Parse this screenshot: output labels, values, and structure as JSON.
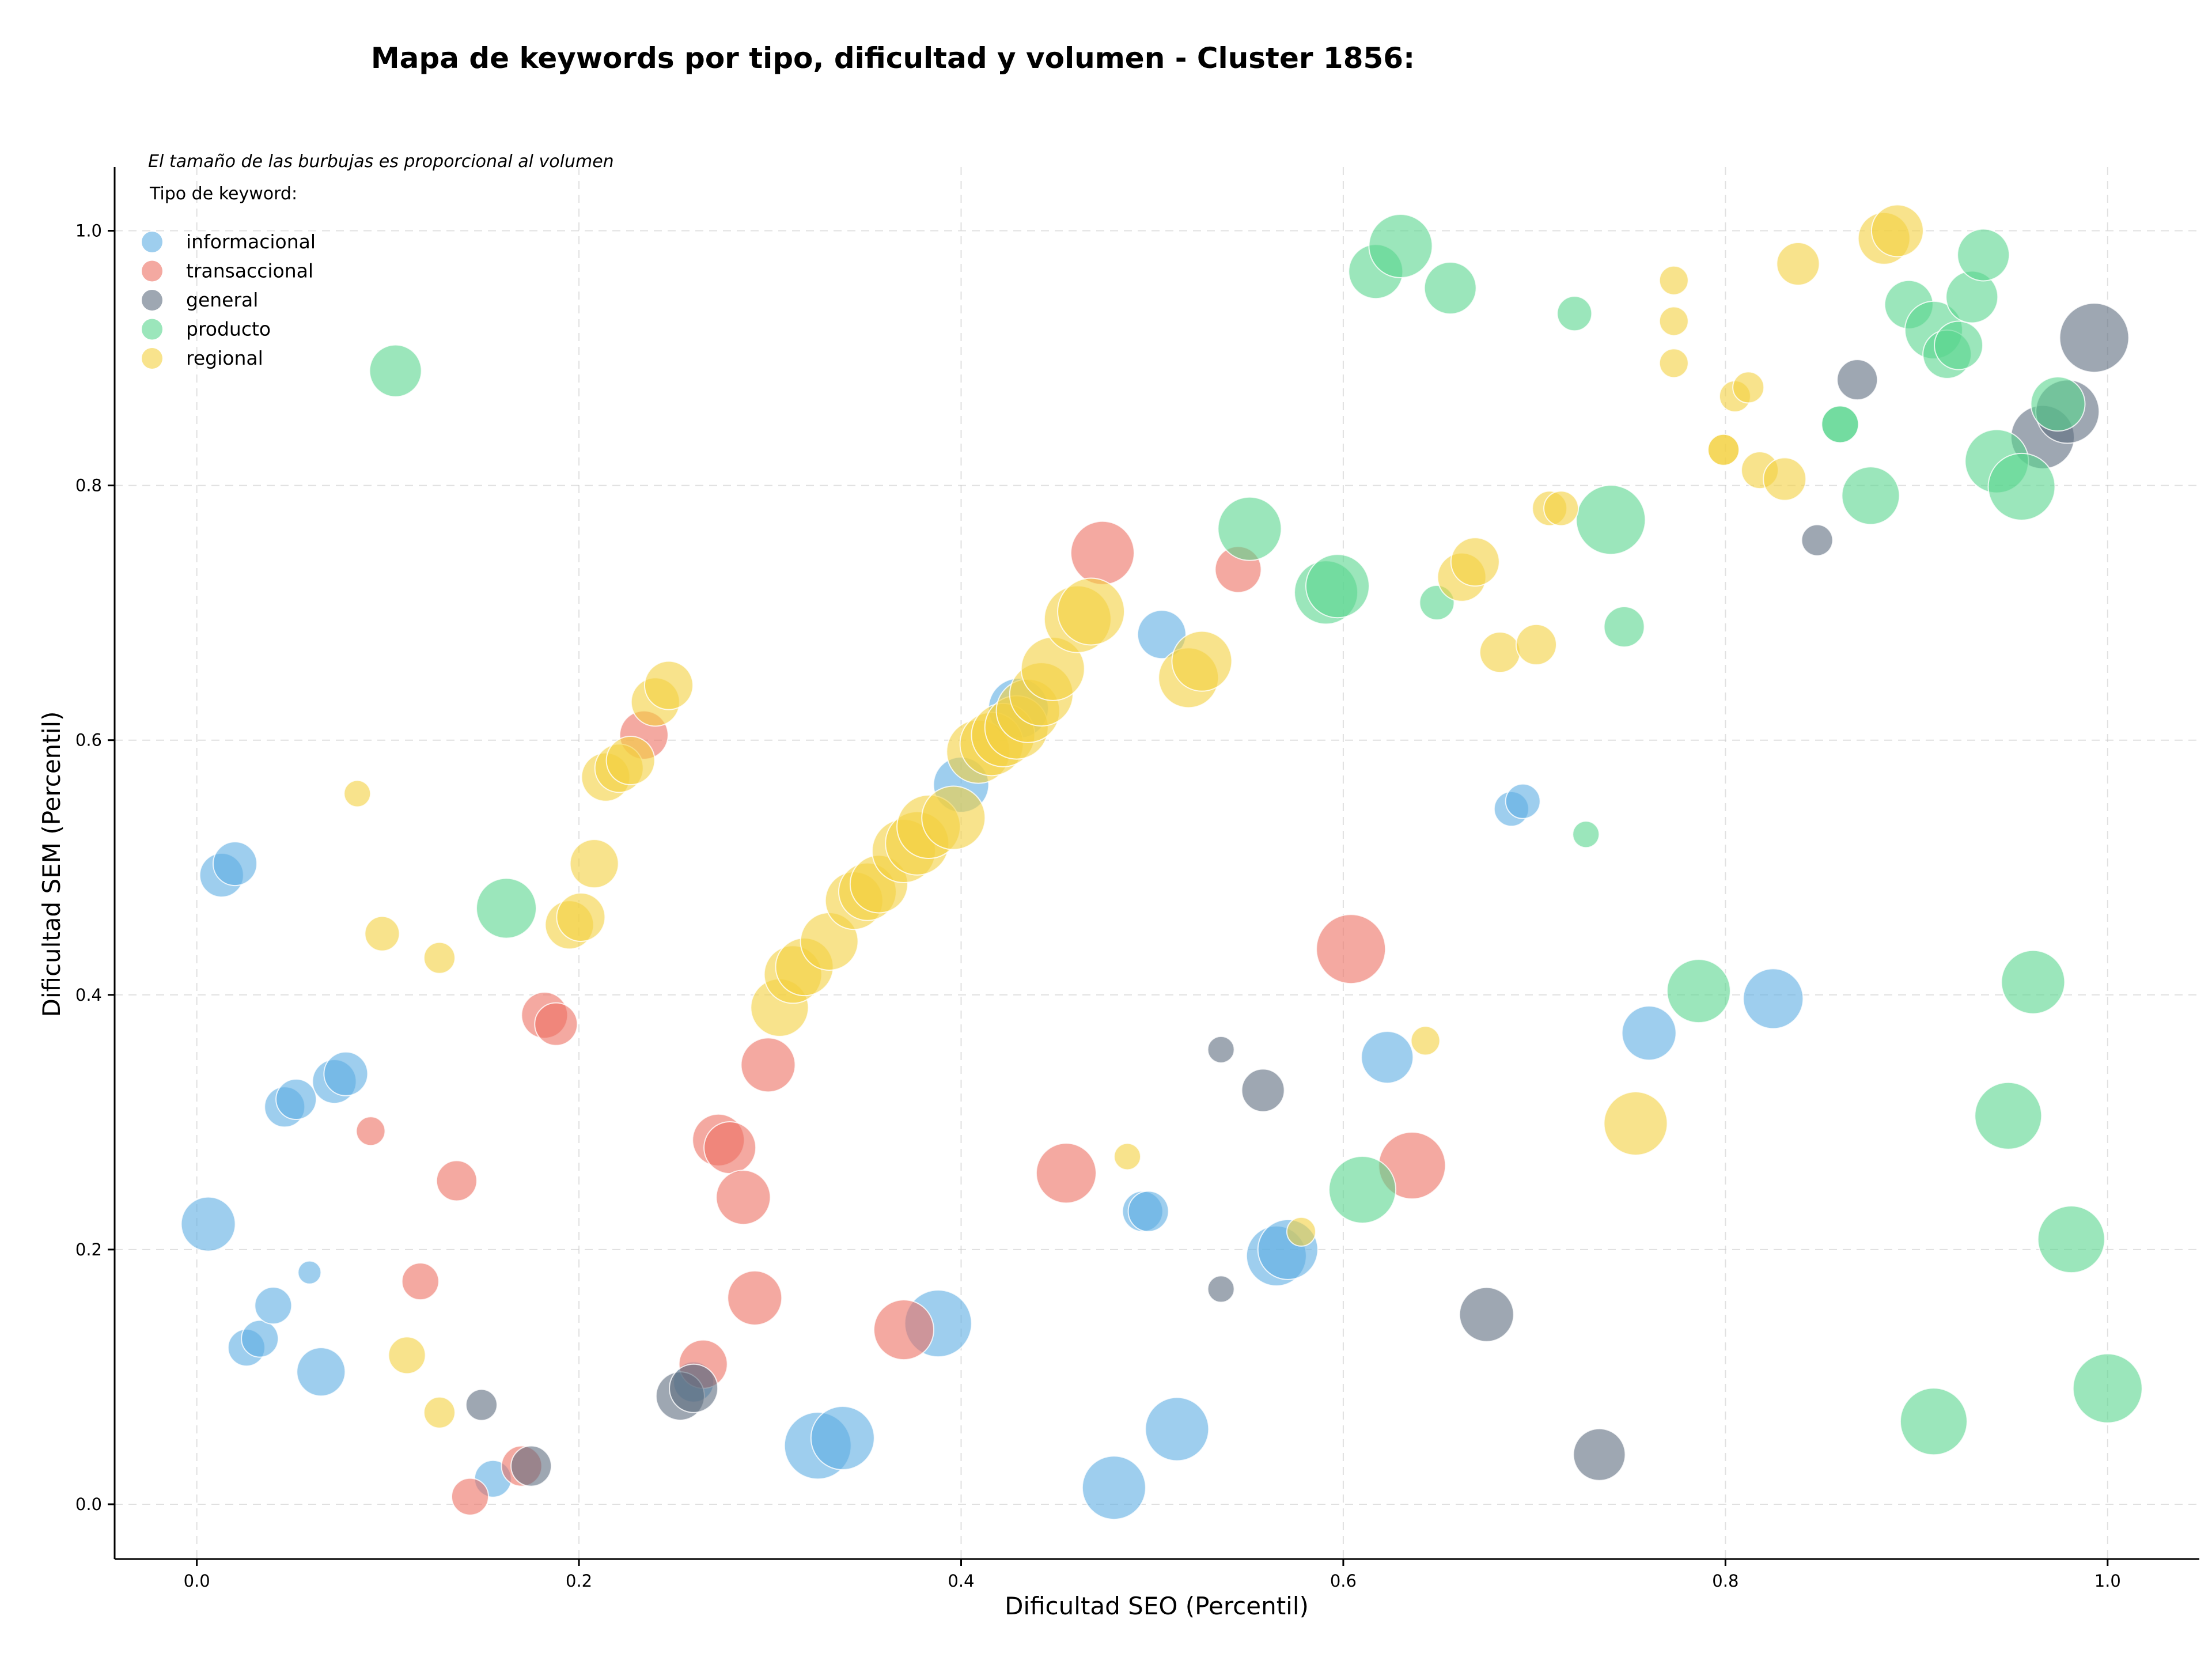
{
  "chart_data": {
    "type": "scatter",
    "title": "Mapa de keywords por tipo, dificultad y volumen - Cluster 1856:",
    "xlabel": "Dificultad SEO (Percentil)",
    "ylabel": "Dificultad SEM (Percentil)",
    "note": "El tamaño de las burbujas es proporcional al volumen",
    "legend_title": "Tipo de keyword:",
    "legend_position": "top-left",
    "grid": true,
    "xlim": [
      -0.043,
      1.048
    ],
    "ylim": [
      -0.043,
      1.05
    ],
    "x_ticks": [
      "0.0",
      "0.2",
      "0.4",
      "0.6",
      "0.8",
      "1.0"
    ],
    "y_ticks": [
      "0.0",
      "0.2",
      "0.4",
      "0.6",
      "0.8",
      "1.0"
    ],
    "series": [
      {
        "name": "informacional",
        "color": "#5dade2",
        "points": [
          [
            0.006,
            0.22,
            47
          ],
          [
            0.013,
            0.494,
            38
          ],
          [
            0.02,
            0.503,
            38
          ],
          [
            0.026,
            0.123,
            32
          ],
          [
            0.033,
            0.13,
            32
          ],
          [
            0.04,
            0.156,
            32
          ],
          [
            0.046,
            0.312,
            35
          ],
          [
            0.052,
            0.318,
            35
          ],
          [
            0.059,
            0.182,
            20
          ],
          [
            0.065,
            0.104,
            42
          ],
          [
            0.072,
            0.332,
            38
          ],
          [
            0.078,
            0.338,
            38
          ],
          [
            0.155,
            0.02,
            32
          ],
          [
            0.26,
            0.096,
            35
          ],
          [
            0.325,
            0.046,
            58
          ],
          [
            0.338,
            0.052,
            55
          ],
          [
            0.388,
            0.142,
            58
          ],
          [
            0.4,
            0.565,
            48
          ],
          [
            0.43,
            0.625,
            52
          ],
          [
            0.48,
            0.013,
            55
          ],
          [
            0.495,
            0.23,
            35
          ],
          [
            0.498,
            0.23,
            35
          ],
          [
            0.505,
            0.683,
            42
          ],
          [
            0.513,
            0.059,
            55
          ],
          [
            0.565,
            0.195,
            52
          ],
          [
            0.571,
            0.2,
            52
          ],
          [
            0.623,
            0.351,
            45
          ],
          [
            0.688,
            0.546,
            30
          ],
          [
            0.694,
            0.552,
            30
          ],
          [
            0.76,
            0.37,
            47
          ],
          [
            0.825,
            0.397,
            52
          ]
        ]
      },
      {
        "name": "transaccional",
        "color": "#ec7063",
        "points": [
          [
            0.091,
            0.293,
            25
          ],
          [
            0.117,
            0.175,
            32
          ],
          [
            0.136,
            0.254,
            35
          ],
          [
            0.143,
            0.006,
            32
          ],
          [
            0.17,
            0.03,
            35
          ],
          [
            0.182,
            0.384,
            40
          ],
          [
            0.188,
            0.377,
            37
          ],
          [
            0.234,
            0.604,
            42
          ],
          [
            0.265,
            0.11,
            42
          ],
          [
            0.273,
            0.286,
            45
          ],
          [
            0.279,
            0.28,
            45
          ],
          [
            0.286,
            0.241,
            47
          ],
          [
            0.292,
            0.162,
            47
          ],
          [
            0.299,
            0.345,
            47
          ],
          [
            0.37,
            0.137,
            52
          ],
          [
            0.455,
            0.26,
            52
          ],
          [
            0.474,
            0.747,
            55
          ],
          [
            0.545,
            0.734,
            40
          ],
          [
            0.604,
            0.436,
            60
          ],
          [
            0.636,
            0.266,
            58
          ]
        ]
      },
      {
        "name": "general",
        "color": "#5d6d7e",
        "points": [
          [
            0.149,
            0.078,
            27
          ],
          [
            0.175,
            0.03,
            35
          ],
          [
            0.253,
            0.085,
            42
          ],
          [
            0.26,
            0.091,
            42
          ],
          [
            0.536,
            0.357,
            23
          ],
          [
            0.536,
            0.169,
            23
          ],
          [
            0.558,
            0.325,
            37
          ],
          [
            0.675,
            0.149,
            47
          ],
          [
            0.734,
            0.039,
            45
          ],
          [
            0.848,
            0.757,
            27
          ],
          [
            0.869,
            0.883,
            35
          ],
          [
            0.966,
            0.838,
            55
          ],
          [
            0.979,
            0.858,
            55
          ],
          [
            0.993,
            0.916,
            60
          ]
        ]
      },
      {
        "name": "producto",
        "color": "#58d68d",
        "points": [
          [
            0.104,
            0.89,
            45
          ],
          [
            0.162,
            0.468,
            52
          ],
          [
            0.551,
            0.766,
            55
          ],
          [
            0.591,
            0.716,
            55
          ],
          [
            0.597,
            0.721,
            55
          ],
          [
            0.61,
            0.247,
            58
          ],
          [
            0.617,
            0.968,
            47
          ],
          [
            0.63,
            0.988,
            55
          ],
          [
            0.649,
            0.708,
            30
          ],
          [
            0.656,
            0.955,
            45
          ],
          [
            0.721,
            0.935,
            30
          ],
          [
            0.727,
            0.526,
            23
          ],
          [
            0.74,
            0.773,
            60
          ],
          [
            0.747,
            0.689,
            35
          ],
          [
            0.786,
            0.403,
            55
          ],
          [
            0.86,
            0.848,
            32
          ],
          [
            0.86,
            0.848,
            32
          ],
          [
            0.876,
            0.792,
            50
          ],
          [
            0.896,
            0.942,
            42
          ],
          [
            0.909,
            0.065,
            58
          ],
          [
            0.909,
            0.922,
            50
          ],
          [
            0.916,
            0.903,
            42
          ],
          [
            0.922,
            0.91,
            42
          ],
          [
            0.929,
            0.948,
            45
          ],
          [
            0.935,
            0.981,
            45
          ],
          [
            0.948,
            0.305,
            58
          ],
          [
            0.961,
            0.41,
            55
          ],
          [
            0.974,
            0.864,
            47
          ],
          [
            0.981,
            0.208,
            58
          ],
          [
            1.0,
            0.091,
            60
          ],
          [
            0.942,
            0.819,
            55
          ],
          [
            0.955,
            0.799,
            58
          ]
        ]
      },
      {
        "name": "regional",
        "color": "#f4d03f",
        "points": [
          [
            0.084,
            0.558,
            23
          ],
          [
            0.097,
            0.448,
            30
          ],
          [
            0.11,
            0.117,
            32
          ],
          [
            0.127,
            0.429,
            27
          ],
          [
            0.127,
            0.072,
            27
          ],
          [
            0.195,
            0.455,
            42
          ],
          [
            0.201,
            0.461,
            42
          ],
          [
            0.208,
            0.503,
            42
          ],
          [
            0.214,
            0.571,
            42
          ],
          [
            0.221,
            0.578,
            42
          ],
          [
            0.227,
            0.584,
            42
          ],
          [
            0.24,
            0.63,
            42
          ],
          [
            0.247,
            0.643,
            42
          ],
          [
            0.305,
            0.39,
            50
          ],
          [
            0.312,
            0.416,
            50
          ],
          [
            0.318,
            0.422,
            50
          ],
          [
            0.331,
            0.442,
            50
          ],
          [
            0.344,
            0.474,
            50
          ],
          [
            0.351,
            0.481,
            50
          ],
          [
            0.357,
            0.487,
            50
          ],
          [
            0.37,
            0.513,
            55
          ],
          [
            0.377,
            0.519,
            55
          ],
          [
            0.383,
            0.532,
            55
          ],
          [
            0.396,
            0.539,
            55
          ],
          [
            0.409,
            0.591,
            55
          ],
          [
            0.416,
            0.597,
            55
          ],
          [
            0.422,
            0.604,
            55
          ],
          [
            0.429,
            0.61,
            55
          ],
          [
            0.435,
            0.623,
            55
          ],
          [
            0.442,
            0.636,
            55
          ],
          [
            0.448,
            0.656,
            55
          ],
          [
            0.461,
            0.695,
            58
          ],
          [
            0.468,
            0.701,
            58
          ],
          [
            0.487,
            0.273,
            23
          ],
          [
            0.519,
            0.649,
            52
          ],
          [
            0.526,
            0.662,
            52
          ],
          [
            0.578,
            0.214,
            25
          ],
          [
            0.643,
            0.364,
            25
          ],
          [
            0.662,
            0.728,
            42
          ],
          [
            0.669,
            0.74,
            42
          ],
          [
            0.682,
            0.669,
            35
          ],
          [
            0.701,
            0.675,
            35
          ],
          [
            0.708,
            0.782,
            30
          ],
          [
            0.714,
            0.782,
            30
          ],
          [
            0.753,
            0.299,
            55
          ],
          [
            0.773,
            0.961,
            25
          ],
          [
            0.773,
            0.929,
            25
          ],
          [
            0.773,
            0.896,
            25
          ],
          [
            0.799,
            0.828,
            27
          ],
          [
            0.799,
            0.828,
            27
          ],
          [
            0.805,
            0.87,
            27
          ],
          [
            0.812,
            0.877,
            27
          ],
          [
            0.818,
            0.812,
            32
          ],
          [
            0.831,
            0.805,
            37
          ],
          [
            0.838,
            0.974,
            37
          ],
          [
            0.883,
            0.994,
            45
          ],
          [
            0.89,
            1.0,
            45
          ]
        ]
      }
    ]
  }
}
